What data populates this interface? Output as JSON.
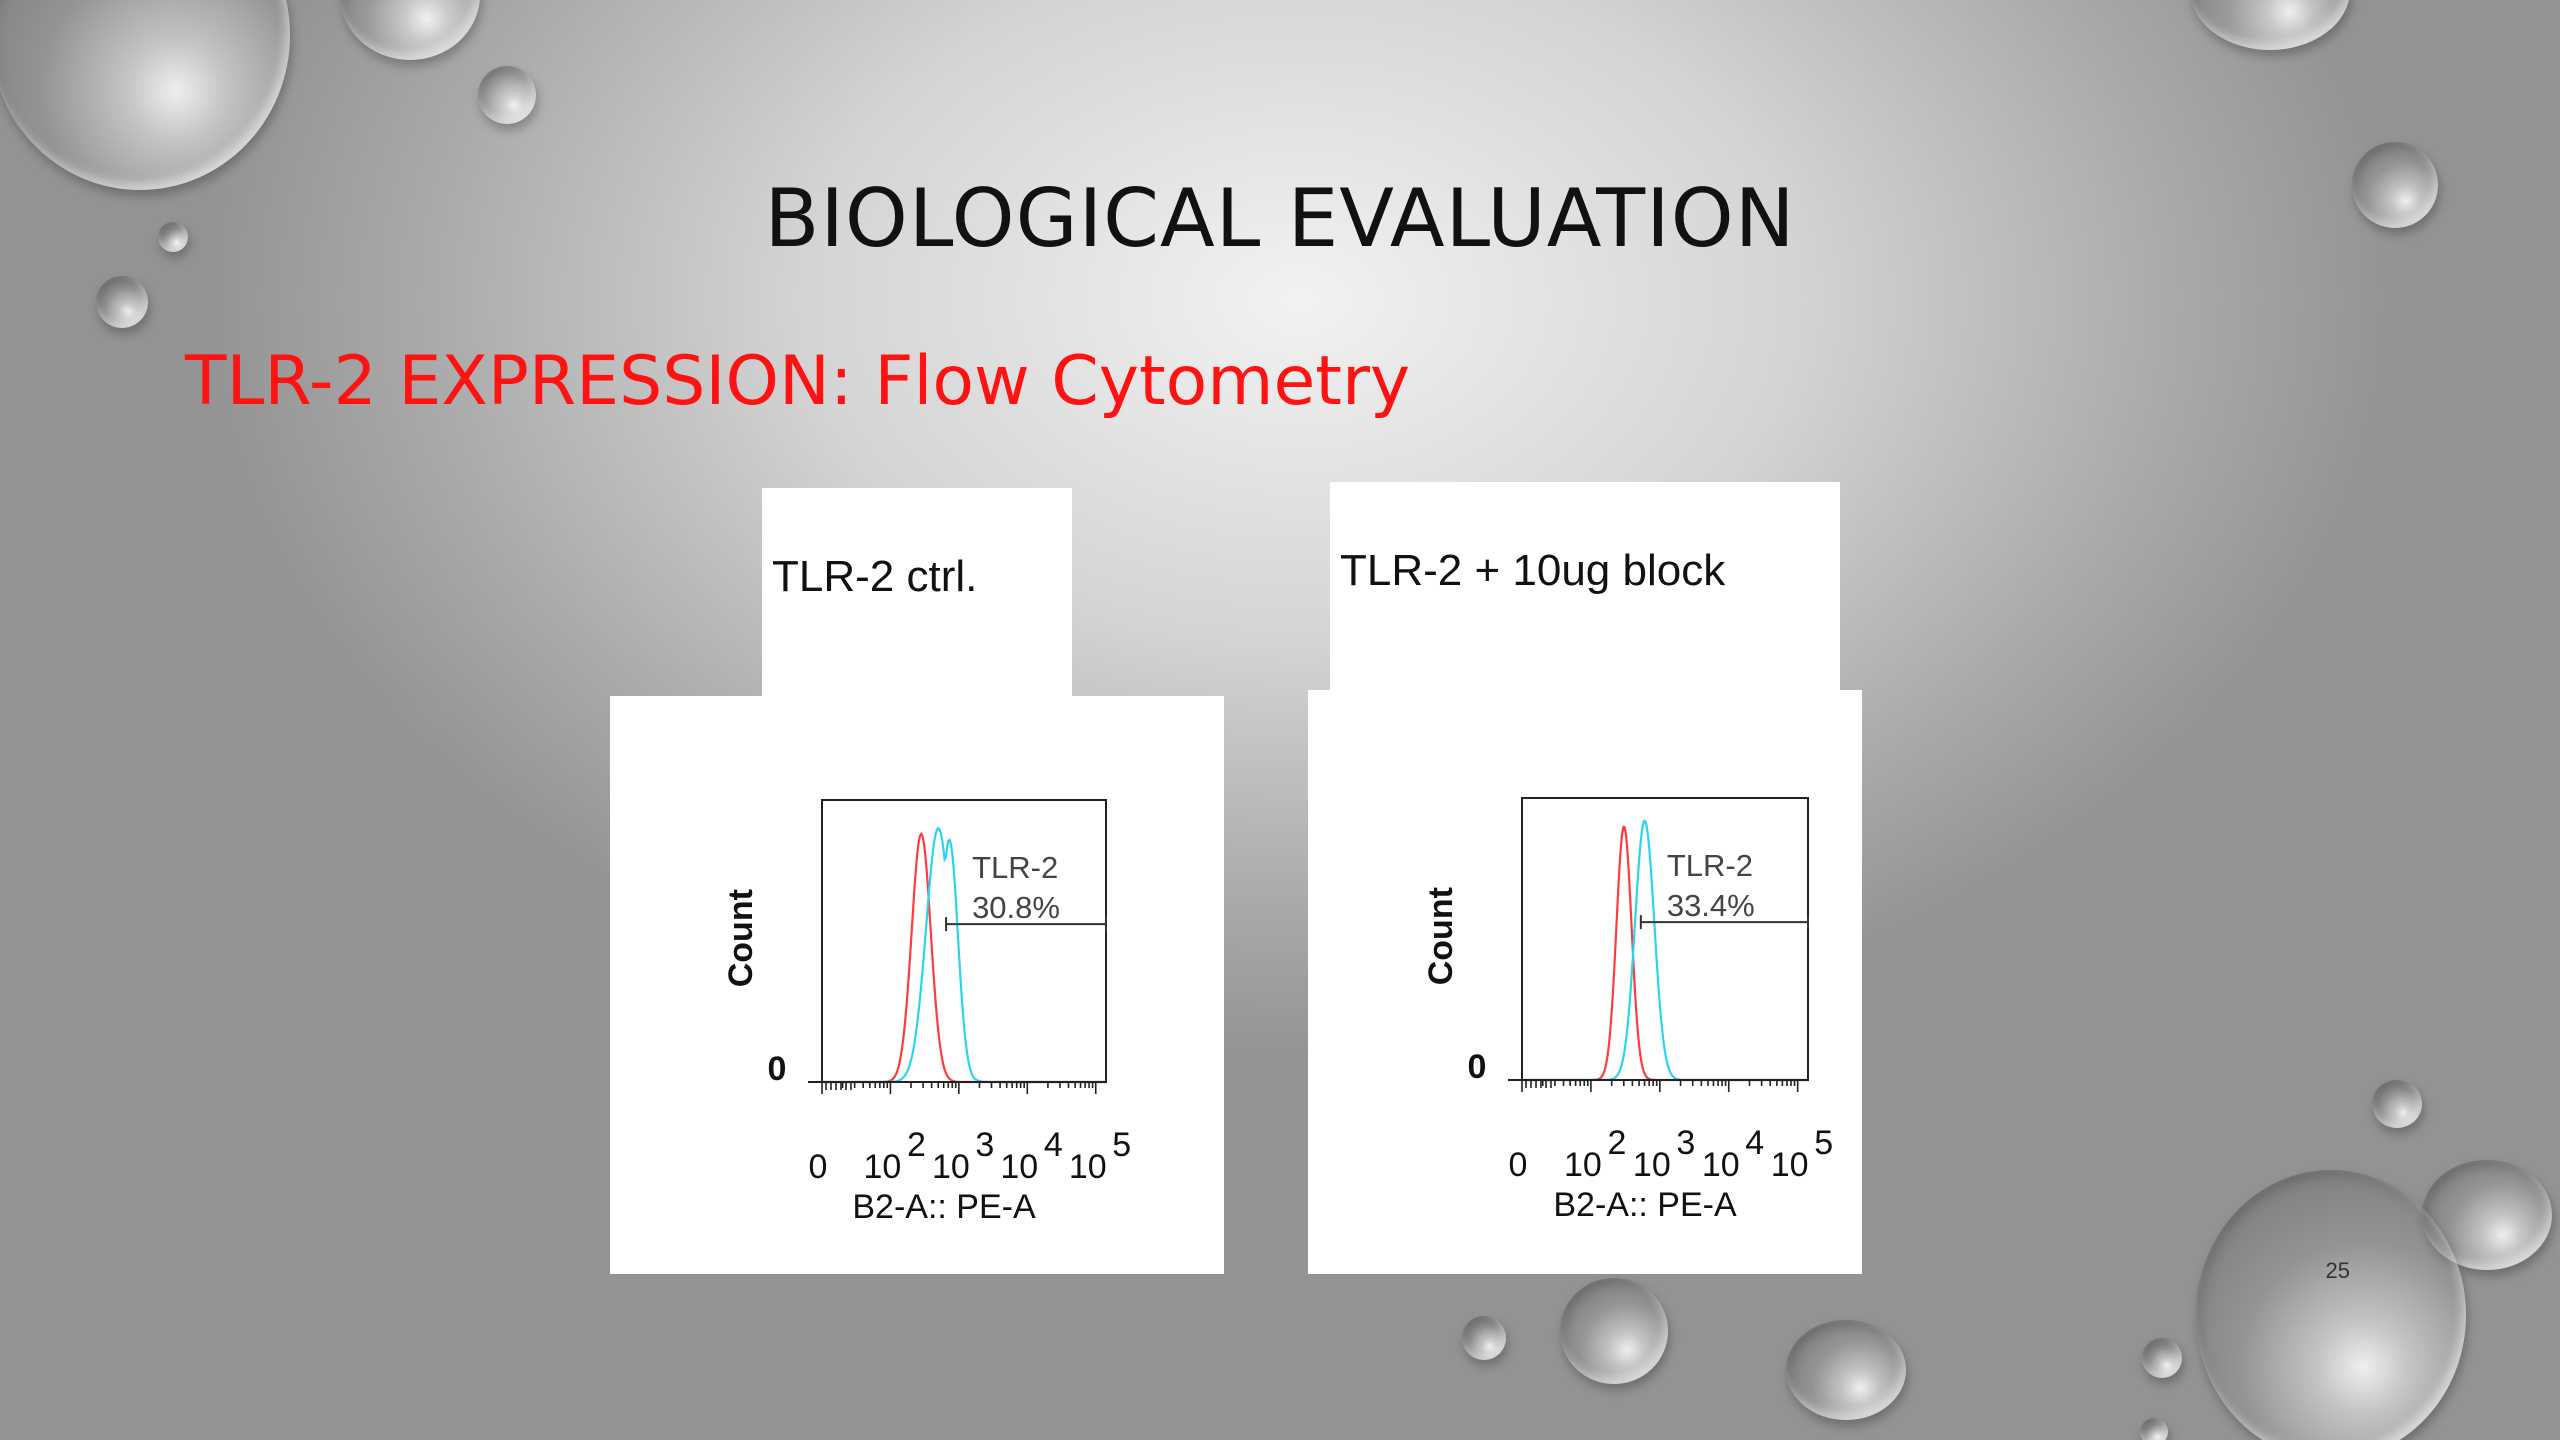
{
  "slide": {
    "title": "BIOLOGICAL EVALUATION",
    "subtitle": "TLR-2 EXPRESSION: Flow Cytometry",
    "page_number": "25",
    "subtitle_color": "#ff1212"
  },
  "chart_data": [
    {
      "type": "histogram",
      "panel_label": "TLR-2 ctrl.",
      "xlabel": "B2-A:: PE-A",
      "ylabel": "Count",
      "y_zero_label": "0",
      "x_scale": "biexponential",
      "x_ticks": [
        {
          "value": 0,
          "label": "0",
          "exp": ""
        },
        {
          "value": 100,
          "label": "10",
          "exp": "2"
        },
        {
          "value": 1000,
          "label": "10",
          "exp": "3"
        },
        {
          "value": 10000,
          "label": "10",
          "exp": "4"
        },
        {
          "value": 100000,
          "label": "10",
          "exp": "5"
        }
      ],
      "gate": {
        "name": "TLR-2",
        "percent": "30.8%",
        "from": 650,
        "to": 262144
      },
      "series": [
        {
          "color": "#ff3b3b",
          "peak_log": 2.45,
          "width_log": 0.14,
          "height": 0.88
        },
        {
          "color": "#2ad4f0",
          "peak_log": 2.7,
          "width_log": 0.18,
          "height": 0.9,
          "double": true
        }
      ]
    },
    {
      "type": "histogram",
      "panel_label": "TLR-2 + 10ug block",
      "xlabel": "B2-A:: PE-A",
      "ylabel": "Count",
      "y_zero_label": "0",
      "x_scale": "biexponential",
      "x_ticks": [
        {
          "value": 0,
          "label": "0",
          "exp": ""
        },
        {
          "value": 100,
          "label": "10",
          "exp": "2"
        },
        {
          "value": 1000,
          "label": "10",
          "exp": "3"
        },
        {
          "value": 10000,
          "label": "10",
          "exp": "4"
        },
        {
          "value": 100000,
          "label": "10",
          "exp": "5"
        }
      ],
      "gate": {
        "name": "TLR-2",
        "percent": "33.4%",
        "from": 530,
        "to": 262144
      },
      "series": [
        {
          "color": "#ff3b3b",
          "peak_log": 2.48,
          "width_log": 0.11,
          "height": 0.9
        },
        {
          "color": "#2ad4f0",
          "peak_log": 2.78,
          "width_log": 0.14,
          "height": 0.92
        }
      ]
    }
  ]
}
